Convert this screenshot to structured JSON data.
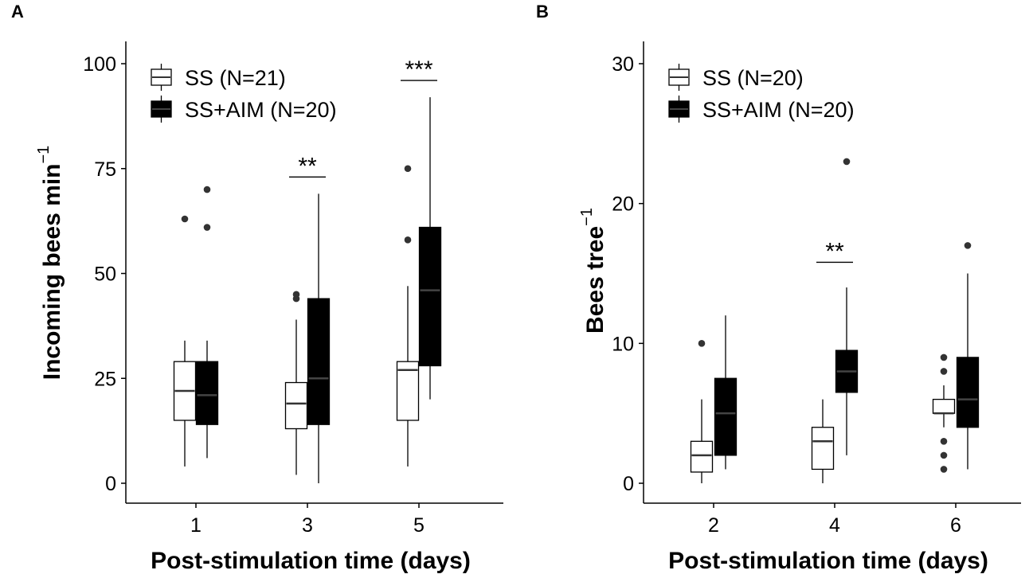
{
  "figure": {
    "background": "#ffffff",
    "ink": "#000000",
    "outlier_color": "#333333"
  },
  "chart_data": [
    {
      "panel_label": "A",
      "type": "boxplot",
      "ylabel_main": "Incoming bees  min",
      "ylabel_superscript": "−1",
      "xlabel": "Post-stimulation time (days)",
      "ylim": [
        0,
        100
      ],
      "yticks": [
        0,
        25,
        50,
        75,
        100
      ],
      "categories": [
        "1",
        "3",
        "5"
      ],
      "legend": {
        "position": "top-left",
        "entries": [
          {
            "label": "SS (N=21)",
            "fill": "#ffffff"
          },
          {
            "label": "SS+AIM (N=20)",
            "fill": "#000000"
          }
        ]
      },
      "series": [
        {
          "name": "SS (N=21)",
          "fill": "#ffffff",
          "median_color": "#333333",
          "boxes": [
            {
              "category": "1",
              "min": 4,
              "q1": 15,
              "median": 22,
              "q3": 29,
              "max": 34,
              "outliers": [
                63
              ]
            },
            {
              "category": "3",
              "min": 2,
              "q1": 13,
              "median": 19,
              "q3": 24,
              "max": 39,
              "outliers": [
                44,
                45
              ]
            },
            {
              "category": "5",
              "min": 4,
              "q1": 15,
              "median": 27,
              "q3": 29,
              "max": 47,
              "outliers": [
                58,
                75
              ]
            }
          ]
        },
        {
          "name": "SS+AIM (N=20)",
          "fill": "#000000",
          "median_color": "#444444",
          "boxes": [
            {
              "category": "1",
              "min": 6,
              "q1": 14,
              "median": 21,
              "q3": 29,
              "max": 34,
              "outliers": [
                61,
                70
              ]
            },
            {
              "category": "3",
              "min": 0,
              "q1": 14,
              "median": 25,
              "q3": 44,
              "max": 69,
              "outliers": []
            },
            {
              "category": "5",
              "min": 20,
              "q1": 28,
              "median": 46,
              "q3": 61,
              "max": 92,
              "outliers": []
            }
          ]
        }
      ],
      "significance": [
        {
          "category": "3",
          "y": 73,
          "label": "**"
        },
        {
          "category": "5",
          "y": 96,
          "label": "***"
        }
      ]
    },
    {
      "panel_label": "B",
      "type": "boxplot",
      "ylabel_main": "Bees  tree",
      "ylabel_superscript": "−1",
      "xlabel": "Post-stimulation time (days)",
      "ylim": [
        0,
        30
      ],
      "yticks": [
        0,
        10,
        20,
        30
      ],
      "categories": [
        "2",
        "4",
        "6"
      ],
      "legend": {
        "position": "top-left",
        "entries": [
          {
            "label": "SS (N=20)",
            "fill": "#ffffff"
          },
          {
            "label": "SS+AIM (N=20)",
            "fill": "#000000"
          }
        ]
      },
      "series": [
        {
          "name": "SS (N=20)",
          "fill": "#ffffff",
          "median_color": "#333333",
          "boxes": [
            {
              "category": "2",
              "min": 0,
              "q1": 0.8,
              "median": 2,
              "q3": 3,
              "max": 6,
              "outliers": [
                10
              ]
            },
            {
              "category": "4",
              "min": 0,
              "q1": 1,
              "median": 3,
              "q3": 4,
              "max": 6,
              "outliers": []
            },
            {
              "category": "6",
              "min": 4,
              "q1": 5,
              "median": 5,
              "q3": 6,
              "max": 7,
              "outliers": [
                1,
                2,
                3,
                8,
                9
              ]
            }
          ]
        },
        {
          "name": "SS+AIM (N=20)",
          "fill": "#000000",
          "median_color": "#444444",
          "boxes": [
            {
              "category": "2",
              "min": 1,
              "q1": 2,
              "median": 5,
              "q3": 7.5,
              "max": 12,
              "outliers": []
            },
            {
              "category": "4",
              "min": 2,
              "q1": 6.5,
              "median": 8,
              "q3": 9.5,
              "max": 14,
              "outliers": [
                23
              ]
            },
            {
              "category": "6",
              "min": 1,
              "q1": 4,
              "median": 6,
              "q3": 9,
              "max": 15,
              "outliers": [
                17
              ]
            }
          ]
        }
      ],
      "significance": [
        {
          "category": "4",
          "y": 15.8,
          "label": "**"
        }
      ]
    }
  ]
}
